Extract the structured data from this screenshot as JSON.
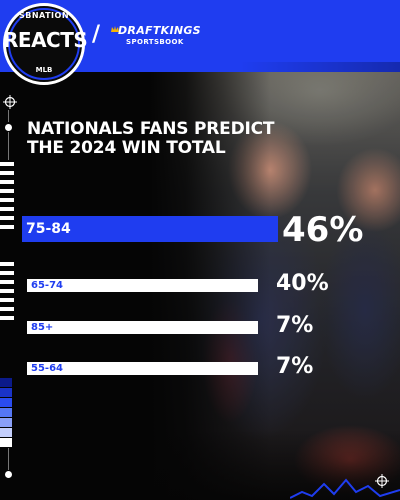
{
  "brand": {
    "logo_top": "SBNATION",
    "logo_main": "REACTS",
    "logo_bottom": "MLB",
    "partner_separator": "/",
    "partner_name": "DRAFTKINGS",
    "partner_sub": "SPORTSBOOK",
    "accent_color": "#1f3df0"
  },
  "chart_data": {
    "type": "bar",
    "orientation": "horizontal",
    "title": "NATIONALS FANS PREDICT THE 2024 WIN TOTAL",
    "categories": [
      "75-84",
      "65-74",
      "85+",
      "55-64"
    ],
    "values": [
      46,
      40,
      7,
      7
    ],
    "value_labels": [
      "46%",
      "40%",
      "7%",
      "7%"
    ],
    "unit": "%",
    "highlight_index": 0,
    "highlight_color": "#1f3df0",
    "bar_color": "#ffffff",
    "grid": false,
    "legend": "none"
  }
}
